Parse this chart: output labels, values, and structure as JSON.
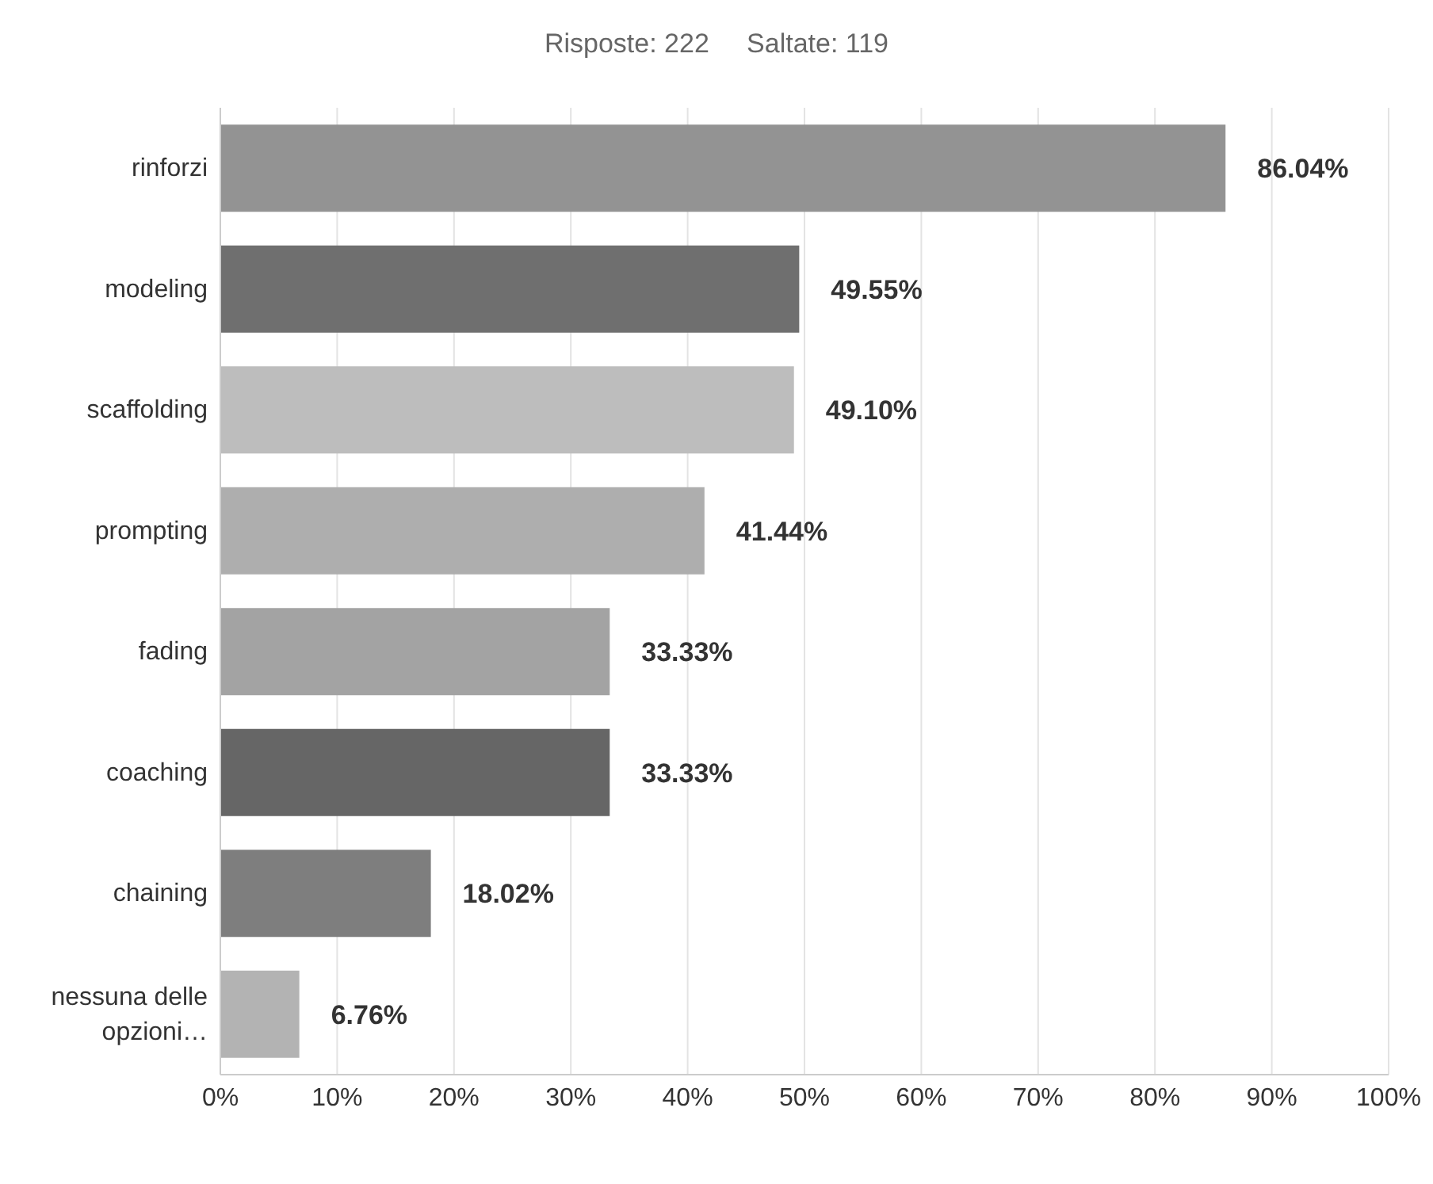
{
  "chart_data": {
    "type": "bar",
    "orientation": "horizontal",
    "title": "Risposte: 222     Saltate: 119",
    "categories": [
      "rinforzi",
      "modeling",
      "scaffolding",
      "prompting",
      "fading",
      "coaching",
      "chaining",
      "nessuna delle opzioni…"
    ],
    "values": [
      86.04,
      49.55,
      49.1,
      41.44,
      33.33,
      33.33,
      18.02,
      6.76
    ],
    "value_labels": [
      "86.04%",
      "49.55%",
      "49.10%",
      "41.44%",
      "33.33%",
      "33.33%",
      "18.02%",
      "6.76%"
    ],
    "colors": [
      "#939393",
      "#6f6f6f",
      "#bdbdbd",
      "#aeaeae",
      "#a3a3a3",
      "#666666",
      "#7e7e7e",
      "#b3b3b3"
    ],
    "xlim": [
      0,
      100
    ],
    "xticks": [
      {
        "value": 0,
        "label": "0%"
      },
      {
        "value": 10,
        "label": "10%"
      },
      {
        "value": 20,
        "label": "20%"
      },
      {
        "value": 30,
        "label": "30%"
      },
      {
        "value": 40,
        "label": "40%"
      },
      {
        "value": 50,
        "label": "50%"
      },
      {
        "value": 60,
        "label": "60%"
      },
      {
        "value": 70,
        "label": "70%"
      },
      {
        "value": 80,
        "label": "80%"
      },
      {
        "value": 90,
        "label": "90%"
      },
      {
        "value": 100,
        "label": "100%"
      }
    ],
    "grid": "x"
  }
}
